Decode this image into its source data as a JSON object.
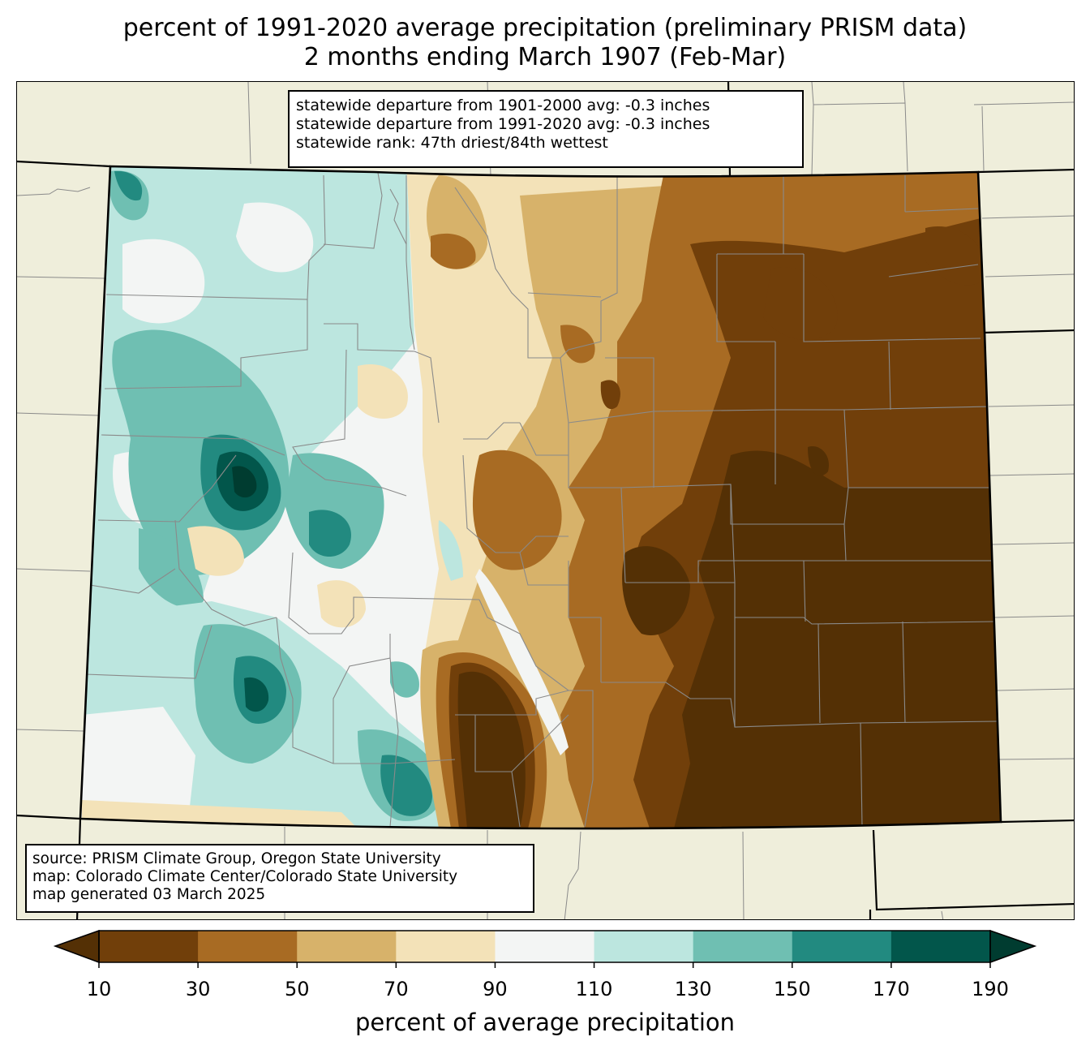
{
  "title": {
    "line1": "percent of 1991-2020 average precipitation (preliminary PRISM data)",
    "line2": "2 months ending March 1907 (Feb-Mar)"
  },
  "stats": {
    "line1": "statewide departure from 1901-2000 avg: -0.3 inches",
    "line2": "statewide departure from 1991-2020 avg: -0.3 inches",
    "line3": "statewide rank: 47th driest/84th wettest"
  },
  "source": {
    "line1": "source: PRISM Climate Group, Oregon State University",
    "line2": "map: Colorado Climate Center/Colorado State University",
    "line3": "map generated 03 March 2025"
  },
  "colorbar": {
    "label": "percent of average precipitation",
    "ticks": [
      "10",
      "30",
      "50",
      "70",
      "90",
      "110",
      "130",
      "150",
      "170",
      "190"
    ],
    "under_color": "#543005",
    "over_color": "#003c30",
    "colors": [
      "#713f0a",
      "#a86b23",
      "#d7b26a",
      "#f3e2b8",
      "#f3f5f4",
      "#bce6df",
      "#6fbfb2",
      "#228a80",
      "#02564b"
    ]
  },
  "map": {
    "land_color": "#efeedb",
    "state_outline_color": "#000000",
    "county_line_color": "#8a8a8a"
  }
}
